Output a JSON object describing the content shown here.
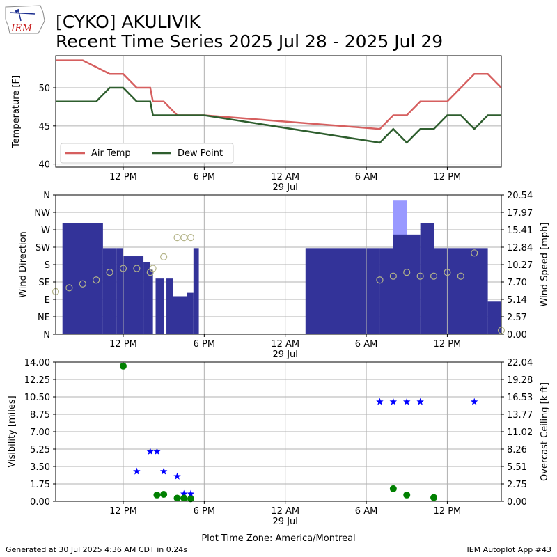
{
  "header": {
    "logo_text": "IEM",
    "title_line1": "[CYKO] AKULIVIK",
    "title_line2": "Recent Time Series 2025 Jul 28 - 2025 Jul 29"
  },
  "footer": {
    "left": "Generated at 30 Jul 2025 4:36 AM CDT in 0.24s",
    "right": "IEM Autoplot App #43",
    "xlabel": "Plot Time Zone: America/Montreal"
  },
  "colors": {
    "air_temp": "#d65f5f",
    "dew_point": "#2e5e2e",
    "wind_speed": "#333399",
    "wind_gust": "#9999ff",
    "wind_dir_marker": "#b5b58a",
    "visibility": "#0000ff",
    "ceiling": "#008000",
    "grid": "#b0b0b0"
  },
  "chart_data": [
    {
      "type": "line",
      "panel": "temperature",
      "ylabel": "Temperature [F]",
      "ylim": [
        39.6,
        54.2
      ],
      "yticks": [
        40,
        45,
        50
      ],
      "xlim": [
        7.0,
        40.0
      ],
      "x_unit": "hours since 2025-07-28 00:00 local",
      "xticks": [
        {
          "x": 12,
          "label": "12 PM"
        },
        {
          "x": 18,
          "label": "6 PM"
        },
        {
          "x": 24,
          "label": "12 AM",
          "sublabel": "29 Jul"
        },
        {
          "x": 30,
          "label": "6 AM"
        },
        {
          "x": 36,
          "label": "12 PM"
        }
      ],
      "legend": {
        "placement": "lower-left"
      },
      "series": [
        {
          "name": "Air Temp",
          "color": "#d65f5f",
          "x": [
            7.0,
            9.0,
            10.0,
            11.0,
            12.0,
            13.0,
            14.0,
            14.2,
            15.0,
            16.0,
            17.0,
            18.0,
            31.0,
            32.0,
            33.0,
            34.0,
            35.0,
            36.0,
            37.0,
            38.0,
            39.0,
            40.0
          ],
          "y": [
            53.6,
            53.6,
            52.7,
            51.8,
            51.8,
            50.0,
            50.0,
            48.2,
            48.2,
            46.4,
            46.4,
            46.4,
            44.6,
            46.4,
            46.4,
            48.2,
            48.2,
            48.2,
            50.0,
            51.8,
            51.8,
            50.0
          ]
        },
        {
          "name": "Dew Point",
          "color": "#2e5e2e",
          "x": [
            7.0,
            9.0,
            10.0,
            11.0,
            12.0,
            13.0,
            14.0,
            14.2,
            15.0,
            16.0,
            17.0,
            18.0,
            31.0,
            32.0,
            33.0,
            34.0,
            35.0,
            36.0,
            37.0,
            38.0,
            39.0,
            40.0
          ],
          "y": [
            48.2,
            48.2,
            48.2,
            50.0,
            50.0,
            48.2,
            48.2,
            46.4,
            46.4,
            46.4,
            46.4,
            46.4,
            42.8,
            44.6,
            42.8,
            44.6,
            44.6,
            46.4,
            46.4,
            44.6,
            46.4,
            46.4
          ]
        }
      ]
    },
    {
      "type": "bar",
      "panel": "wind",
      "ylabel": "Wind Direction",
      "y2label": "Wind Speed [mph]",
      "direction_ticks": [
        "N",
        "NE",
        "E",
        "SE",
        "S",
        "SW",
        "W",
        "NW",
        "N"
      ],
      "speed_ticks": [
        "0.00",
        "2.57",
        "5.14",
        "7.70",
        "10.27",
        "12.84",
        "15.41",
        "17.97",
        "20.54"
      ],
      "speed_max": 20.54,
      "xlim": [
        7.0,
        40.0
      ],
      "series": [
        {
          "name": "Wind Speed",
          "color": "#333399",
          "bars": [
            [
              7.5,
              10.5,
              16.4
            ],
            [
              10.5,
              11.5,
              12.7
            ],
            [
              11.5,
              12.0,
              12.7
            ],
            [
              12.0,
              12.5,
              11.5
            ],
            [
              12.5,
              13.5,
              11.5
            ],
            [
              13.5,
              14.0,
              10.6
            ],
            [
              14.0,
              14.2,
              9.5
            ],
            [
              14.4,
              15.0,
              8.2
            ],
            [
              15.2,
              15.7,
              8.2
            ],
            [
              15.7,
              16.2,
              5.6
            ],
            [
              16.2,
              16.7,
              5.6
            ],
            [
              16.7,
              17.2,
              6.1
            ],
            [
              17.2,
              17.6,
              12.7
            ],
            [
              25.5,
              31.0,
              12.7
            ],
            [
              31.0,
              32.0,
              12.7
            ],
            [
              32.0,
              33.0,
              14.7
            ],
            [
              33.0,
              34.0,
              14.7
            ],
            [
              34.0,
              35.0,
              16.4
            ],
            [
              35.0,
              39.0,
              12.7
            ],
            [
              39.0,
              40.0,
              4.8
            ],
            [
              40.0,
              41.0,
              12.7
            ]
          ]
        },
        {
          "name": "Wind Gust",
          "color": "#9999ff",
          "bars": [
            [
              32.0,
              33.0,
              19.8
            ]
          ]
        }
      ],
      "direction_points": {
        "name": "Wind Direction",
        "color": "#b5b58a",
        "x": [
          7.0,
          8.0,
          9.0,
          10.0,
          11.0,
          12.0,
          13.0,
          14.0,
          14.2,
          15.0,
          16.0,
          16.5,
          17.0,
          31.0,
          32.0,
          33.0,
          34.0,
          35.0,
          36.0,
          37.0,
          38.0,
          40.0
        ],
        "y": [
          110,
          120,
          130,
          140,
          160,
          170,
          170,
          160,
          170,
          200,
          250,
          250,
          250,
          140,
          150,
          160,
          150,
          150,
          160,
          150,
          210,
          10
        ]
      }
    },
    {
      "type": "scatter",
      "panel": "visibility_ceiling",
      "ylabel": "Visibility [miles]",
      "y2label": "Overcast Ceiling [k ft]",
      "ylim": [
        0,
        14.0
      ],
      "yticks": [
        "0.00",
        "1.75",
        "3.50",
        "5.25",
        "7.00",
        "8.75",
        "10.50",
        "12.25",
        "14.00"
      ],
      "y2lim": [
        0,
        22.04
      ],
      "y2ticks": [
        "0.00",
        "2.75",
        "5.51",
        "8.26",
        "11.02",
        "13.77",
        "16.53",
        "19.28",
        "22.04"
      ],
      "xlim": [
        7.0,
        40.0
      ],
      "series": [
        {
          "name": "Visibility",
          "color": "#0000ff",
          "marker": "star",
          "x": [
            13.0,
            14.0,
            14.5,
            15.0,
            16.0,
            16.5,
            17.0,
            31.0,
            32.0,
            33.0,
            34.0,
            38.0
          ],
          "y": [
            3.0,
            5.0,
            5.0,
            3.0,
            2.5,
            0.75,
            0.75,
            10.0,
            10.0,
            10.0,
            10.0,
            10.0
          ]
        },
        {
          "name": "Overcast Ceiling",
          "color": "#008000",
          "marker": "circle",
          "x": [
            12.0,
            14.5,
            15.0,
            16.0,
            16.5,
            17.0,
            32.0,
            33.0,
            35.0
          ],
          "y": [
            21.4,
            1.0,
            1.1,
            0.5,
            0.5,
            0.4,
            2.0,
            1.0,
            0.6
          ]
        }
      ]
    }
  ]
}
